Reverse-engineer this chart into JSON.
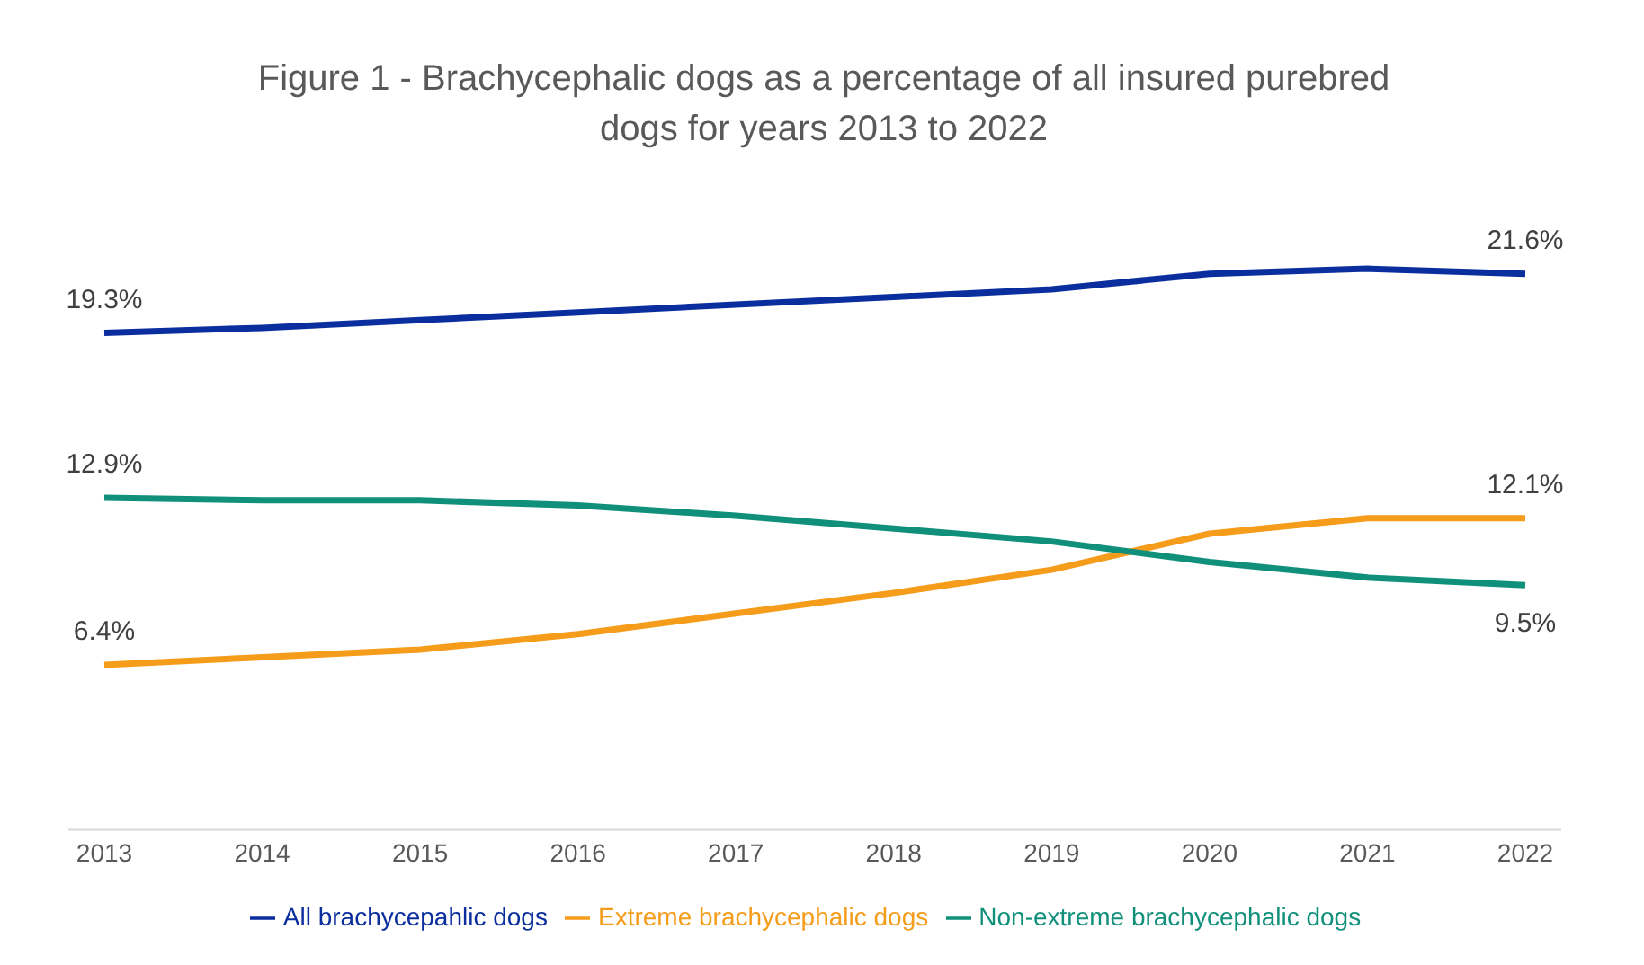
{
  "chart_data": {
    "type": "line",
    "title": "Figure 1 - Brachycephalic dogs as a percentage of all insured purebred dogs for years 2013 to 2022",
    "categories": [
      "2013",
      "2014",
      "2015",
      "2016",
      "2017",
      "2018",
      "2019",
      "2020",
      "2021",
      "2022"
    ],
    "series": [
      {
        "name": "All brachycepahlic dogs",
        "color": "#0a2e9e",
        "values": [
          19.3,
          19.5,
          19.8,
          20.1,
          20.4,
          20.7,
          21.0,
          21.6,
          21.8,
          21.6
        ],
        "value_labels": [
          "19.3%",
          null,
          null,
          null,
          null,
          null,
          null,
          null,
          null,
          "21.6%"
        ]
      },
      {
        "name": "Extreme brachycephalic dogs",
        "color": "#f59c1a",
        "values": [
          6.4,
          6.7,
          7.0,
          7.6,
          8.4,
          9.2,
          10.1,
          11.5,
          12.1,
          12.1
        ],
        "value_labels": [
          "6.4%",
          null,
          null,
          null,
          null,
          null,
          null,
          null,
          null,
          "12.1%"
        ]
      },
      {
        "name": "Non-extreme brachycephalic dogs",
        "color": "#10907a",
        "values": [
          12.9,
          12.8,
          12.8,
          12.6,
          12.2,
          11.7,
          11.2,
          10.4,
          9.8,
          9.5
        ],
        "value_labels": [
          "12.9%",
          null,
          null,
          null,
          null,
          null,
          null,
          null,
          null,
          "9.5%"
        ]
      }
    ],
    "tick_labels": "x",
    "legend": "bottom",
    "marker": "none",
    "line_style": "solid"
  }
}
